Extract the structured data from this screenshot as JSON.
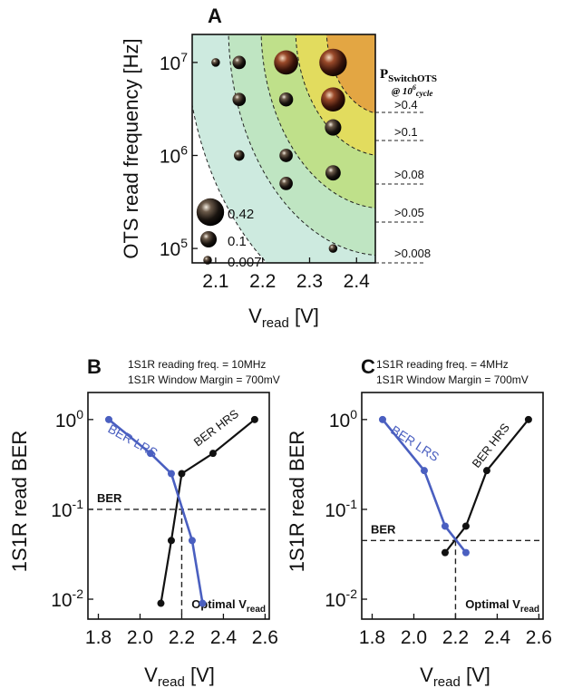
{
  "panelA": {
    "letter": "A",
    "ylabel": "OTS read frequency [Hz]",
    "xlabel_main": "V",
    "xlabel_sub": "read",
    "xlabel_unit": " [V]",
    "xticks": [
      "2.1",
      "2.2",
      "2.3",
      "2.4"
    ],
    "yticks": [
      {
        "base": "10",
        "exp": "5"
      },
      {
        "base": "10",
        "exp": "6"
      },
      {
        "base": "10",
        "exp": "7"
      }
    ],
    "legend_title_main": "P",
    "legend_title_sub": "SwitchOTS",
    "legend_title_line2": "@ 10",
    "legend_title_line2_sup": "6",
    "legend_title_line2_sub": "cycle",
    "band_labels": [
      ">0.4",
      ">0.1",
      ">0.08",
      ">0.05",
      ">0.008"
    ],
    "size_legend": [
      "0.42",
      "0.1",
      "0.007"
    ],
    "colors": {
      "band1": "#cdeadf",
      "band2": "#bfe5c2",
      "band3": "#bfe08a",
      "band4": "#e2dc5e",
      "band5": "#e3a643"
    }
  },
  "panelB": {
    "letter": "B",
    "note1": "1S1R reading freq. = 10MHz",
    "note2": "1S1R Window Margin = 700mV",
    "ber_label": "BER",
    "optimal_main": "Optimal V",
    "optimal_sub": "read",
    "lrs_label": "BER LRS",
    "hrs_label": "BER HRS"
  },
  "panelC": {
    "letter": "C",
    "note1": "1S1R reading freq. = 4MHz",
    "note2": "1S1R Window Margin = 700mV",
    "ber_label": "BER",
    "optimal_main": "Optimal V",
    "optimal_sub": "read",
    "lrs_label": "BER LRS",
    "hrs_label": "BER HRS"
  },
  "shared_BC": {
    "ylabel": "1S1R read BER",
    "xlabel_main": "V",
    "xlabel_sub": "read",
    "xlabel_unit": " [V]",
    "xticks": [
      "1.8",
      "2.0",
      "2.2",
      "2.4",
      "2.6"
    ],
    "yticks": [
      {
        "base": "10",
        "exp": "-2"
      },
      {
        "base": "10",
        "exp": "-1"
      },
      {
        "base": "10",
        "exp": "0"
      }
    ],
    "lrs_color": "#4a5fc0",
    "hrs_color": "#111111"
  },
  "chart_data": [
    {
      "type": "scatter",
      "panel": "A",
      "title": "",
      "xlabel": "Vread [V]",
      "ylabel": "OTS read frequency [Hz]",
      "xlim": [
        2.05,
        2.44
      ],
      "ylim": [
        70000,
        20000000
      ],
      "yscale": "log",
      "legend": "P_SwitchOTS @ 10^6 cycle: >0.4, >0.1, >0.08, >0.05, >0.008; marker size 0.42, 0.1, 0.007",
      "series": [
        {
          "points": [
            {
              "x": 2.1,
              "y": 10000000,
              "p": 0.007
            },
            {
              "x": 2.15,
              "y": 10000000,
              "p": 0.05
            },
            {
              "x": 2.25,
              "y": 10000000,
              "p": 0.3
            },
            {
              "x": 2.35,
              "y": 10000000,
              "p": 0.42
            },
            {
              "x": 2.15,
              "y": 4000000,
              "p": 0.05
            },
            {
              "x": 2.25,
              "y": 4000000,
              "p": 0.06
            },
            {
              "x": 2.35,
              "y": 4000000,
              "p": 0.3
            },
            {
              "x": 2.35,
              "y": 2000000,
              "p": 0.1
            },
            {
              "x": 2.15,
              "y": 1000000,
              "p": 0.02
            },
            {
              "x": 2.25,
              "y": 1000000,
              "p": 0.05
            },
            {
              "x": 2.35,
              "y": 650000,
              "p": 0.08
            },
            {
              "x": 2.25,
              "y": 500000,
              "p": 0.05
            },
            {
              "x": 2.35,
              "y": 100000,
              "p": 0.007
            }
          ]
        }
      ]
    },
    {
      "type": "line",
      "panel": "B",
      "title": "",
      "xlabel": "Vread [V]",
      "ylabel": "1S1R read BER",
      "xlim": [
        1.75,
        2.62
      ],
      "ylim": [
        0.006,
        2
      ],
      "yscale": "log",
      "threshold_BER": 0.1,
      "optimal_Vread": 2.2,
      "series": [
        {
          "name": "BER LRS",
          "x": [
            1.85,
            2.05,
            2.15,
            2.25,
            2.3
          ],
          "y": [
            1.0,
            0.42,
            0.25,
            0.045,
            0.009
          ]
        },
        {
          "name": "BER HRS",
          "x": [
            2.1,
            2.15,
            2.2,
            2.35,
            2.55
          ],
          "y": [
            0.009,
            0.045,
            0.25,
            0.42,
            1.0
          ]
        }
      ]
    },
    {
      "type": "line",
      "panel": "C",
      "title": "",
      "xlabel": "Vread [V]",
      "ylabel": "1S1R read BER",
      "xlim": [
        1.75,
        2.62
      ],
      "ylim": [
        0.006,
        2
      ],
      "yscale": "log",
      "threshold_BER": 0.045,
      "optimal_Vread": 2.2,
      "series": [
        {
          "name": "BER LRS",
          "x": [
            1.85,
            2.05,
            2.15,
            2.25
          ],
          "y": [
            1.0,
            0.27,
            0.065,
            0.033
          ]
        },
        {
          "name": "BER HRS",
          "x": [
            2.15,
            2.25,
            2.35,
            2.55
          ],
          "y": [
            0.033,
            0.065,
            0.27,
            1.0
          ]
        }
      ]
    }
  ]
}
